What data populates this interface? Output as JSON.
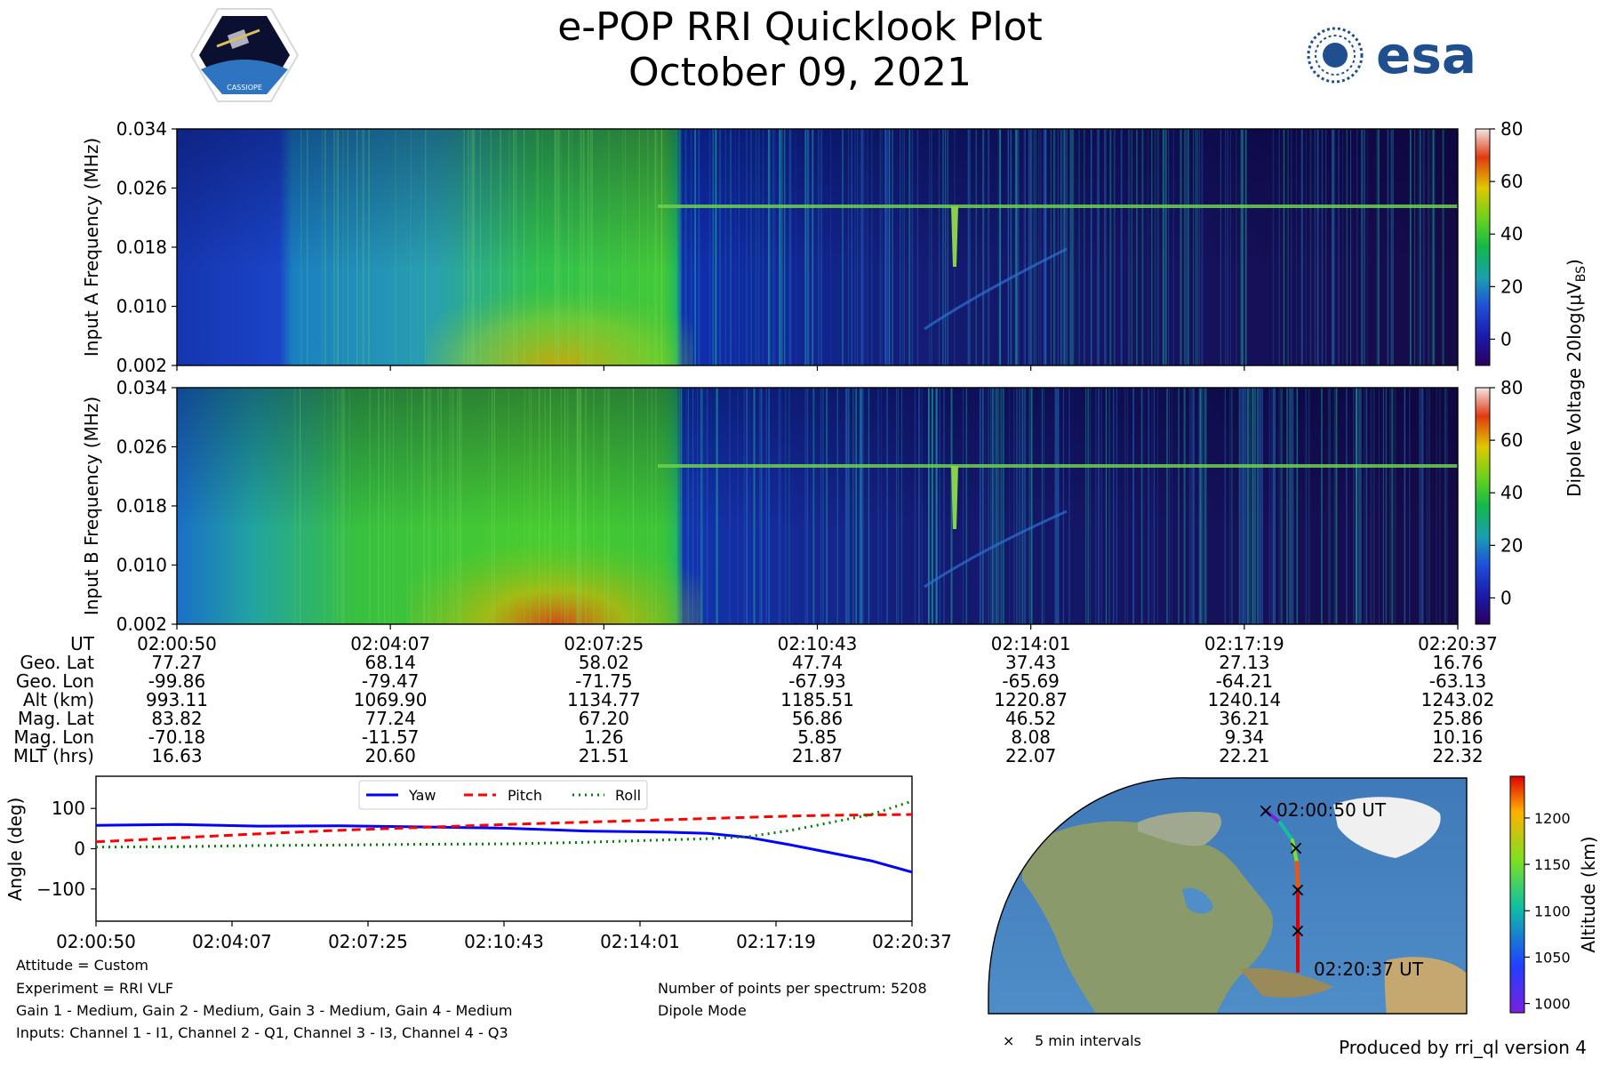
{
  "header": {
    "title": "e-POP RRI Quicklook Plot",
    "date": "October 09, 2021",
    "left_logo": {
      "icon": "cassiope-mission-logo",
      "text": "CASSIOPE"
    },
    "right_logo": {
      "icon": "esa-logo",
      "text": "esa"
    }
  },
  "colors": {
    "yaw": "#0000ff",
    "pitch": "#ff0000",
    "roll": "#008000"
  },
  "chart_data": [
    {
      "type": "heatmap",
      "name": "input-a-spectrogram",
      "ylabel": "Input A Frequency (MHz)",
      "yticks": [
        "0.002",
        "0.010",
        "0.018",
        "0.026",
        "0.034"
      ],
      "ylim": [
        0.002,
        0.034
      ],
      "xlim": [
        "02:00:50",
        "02:20:37"
      ],
      "features": {
        "plasma_line_mhz": 0.024,
        "broadband_end_time": "02:09:30",
        "impulse_time": "02:13:00"
      }
    },
    {
      "type": "heatmap",
      "name": "input-b-spectrogram",
      "ylabel": "Input B Frequency (MHz)",
      "yticks": [
        "0.002",
        "0.010",
        "0.018",
        "0.026",
        "0.034"
      ],
      "ylim": [
        0.002,
        0.034
      ],
      "xlim": [
        "02:00:50",
        "02:20:37"
      ],
      "features": {
        "plasma_line_mhz": 0.024,
        "broadband_end_time": "02:09:30",
        "impulse_time": "02:13:00"
      }
    },
    {
      "type": "colorbar",
      "label": "Dipole Voltage 20log(μV",
      "label_sub": "BS",
      "label_end": ")",
      "ticks": [
        "0",
        "20",
        "40",
        "60",
        "80"
      ],
      "range": [
        -10,
        80
      ]
    },
    {
      "type": "table",
      "name": "ephemeris",
      "rows": [
        {
          "label": "UT",
          "values": [
            "02:00:50",
            "02:04:07",
            "02:07:25",
            "02:10:43",
            "02:14:01",
            "02:17:19",
            "02:20:37"
          ]
        },
        {
          "label": "Geo. Lat",
          "values": [
            "77.27",
            "68.14",
            "58.02",
            "47.74",
            "37.43",
            "27.13",
            "16.76"
          ]
        },
        {
          "label": "Geo. Lon",
          "values": [
            "-99.86",
            "-79.47",
            "-71.75",
            "-67.93",
            "-65.69",
            "-64.21",
            "-63.13"
          ]
        },
        {
          "label": "Alt (km)",
          "values": [
            "993.11",
            "1069.90",
            "1134.77",
            "1185.51",
            "1220.87",
            "1240.14",
            "1243.02"
          ]
        },
        {
          "label": "Mag. Lat",
          "values": [
            "83.82",
            "77.24",
            "67.20",
            "56.86",
            "46.52",
            "36.21",
            "25.86"
          ]
        },
        {
          "label": "Mag. Lon",
          "values": [
            "-70.18",
            "-11.57",
            "1.26",
            "5.85",
            "8.08",
            "9.34",
            "10.16"
          ]
        },
        {
          "label": "MLT (hrs)",
          "values": [
            "16.63",
            "20.60",
            "21.51",
            "21.87",
            "22.07",
            "22.21",
            "22.32"
          ]
        }
      ]
    },
    {
      "type": "line",
      "name": "attitude",
      "ylabel": "Angle (deg)",
      "ylim": [
        -180,
        180
      ],
      "yticks": [
        100,
        0,
        -100
      ],
      "ytick_labels": [
        "100",
        "0",
        "−100"
      ],
      "x": [
        0,
        0.1,
        0.2,
        0.3,
        0.4,
        0.5,
        0.6,
        0.7,
        0.75,
        0.8,
        0.85,
        0.9,
        0.95,
        1.0
      ],
      "xtick_labels": [
        "02:00:50",
        "02:04:07",
        "02:07:25",
        "02:10:43",
        "02:14:01",
        "02:17:19",
        "02:20:37"
      ],
      "series": [
        {
          "name": "Yaw",
          "style": "solid",
          "values": [
            58,
            60,
            56,
            57,
            54,
            51,
            44,
            41,
            38,
            28,
            10,
            -10,
            -30,
            -58
          ]
        },
        {
          "name": "Pitch",
          "style": "dashed",
          "values": [
            17,
            27,
            37,
            46,
            53,
            60,
            66,
            72,
            75,
            78,
            81,
            83,
            84,
            85
          ]
        },
        {
          "name": "Roll",
          "style": "dotted",
          "values": [
            4,
            5,
            8,
            9,
            11,
            12,
            16,
            22,
            25,
            30,
            45,
            65,
            85,
            118
          ]
        }
      ]
    },
    {
      "type": "map",
      "name": "ground-track",
      "track_start_label": "02:00:50 UT",
      "track_end_label": "02:20:37 UT",
      "colorbar_label": "Altitude (km)",
      "colorbar_ticks": [
        "1000",
        "1050",
        "1100",
        "1150",
        "1200"
      ],
      "colorbar_range": [
        990,
        1245
      ],
      "marker_legend": "5 min intervals"
    }
  ],
  "info": {
    "attitude": "Attitude = Custom",
    "experiment": "Experiment = RRI VLF",
    "gains": "Gain 1 - Medium, Gain 2 - Medium, Gain 3 - Medium, Gain 4 - Medium",
    "inputs": "Inputs: Channel 1 - I1, Channel 2 - Q1, Channel 3 - I3, Channel 4 - Q3",
    "points": "Number of points per spectrum: 5208",
    "mode": "Dipole Mode",
    "produced_by": "Produced by rri_ql version 4"
  }
}
